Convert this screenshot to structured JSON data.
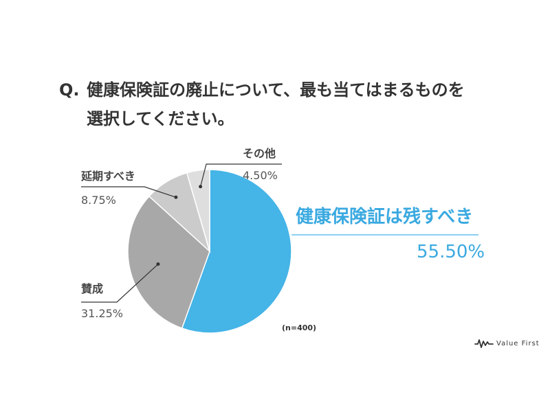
{
  "question": {
    "prefix": "Q.",
    "line1": "健康保険証の廃止について、最も当てはまるものを",
    "line2": "選択してください。"
  },
  "chart_data": {
    "type": "pie",
    "categories": [
      "健康保険証は残すべき",
      "賛成",
      "延期すべき",
      "その他"
    ],
    "values": [
      55.5,
      31.25,
      8.75,
      4.5
    ],
    "value_labels": [
      "55.50%",
      "31.25%",
      "8.75%",
      "4.50%"
    ],
    "colors": [
      "#45b4e7",
      "#a8a8a8",
      "#cbcbcb",
      "#dedede"
    ],
    "start_angle_deg": 0,
    "direction": "clockwise"
  },
  "note": "(n=400)",
  "logo": {
    "text": "Value First"
  }
}
